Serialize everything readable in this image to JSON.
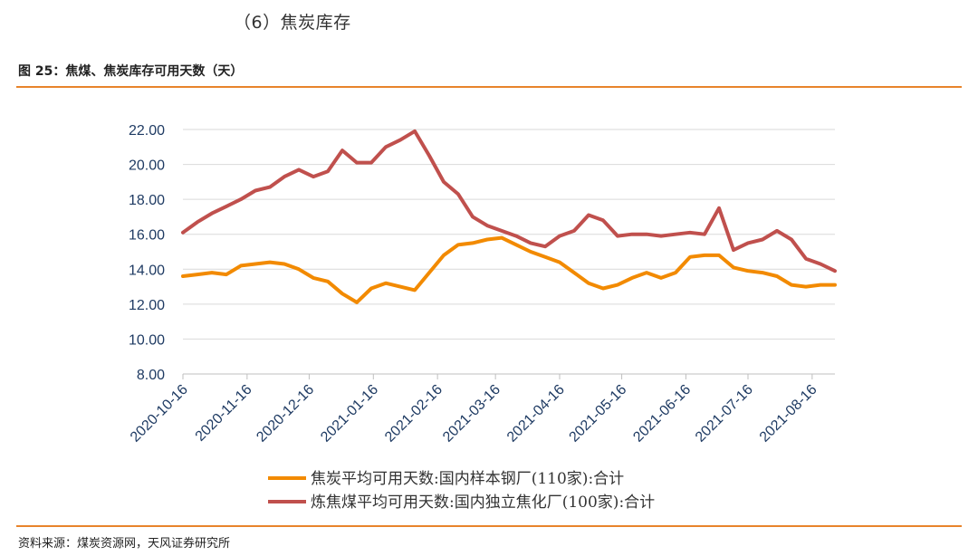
{
  "section_title": "（6）焦炭库存",
  "figure_title": "图 25：焦煤、焦炭库存可用天数（天）",
  "source": "资料来源：煤炭资源网，天风证券研究所",
  "colors": {
    "accent_rule": "#e8842b",
    "series1": "#f28a00",
    "series2": "#c0504d",
    "grid": "#d9d9d9",
    "axis_text": "#1f3b63"
  },
  "chart_data": {
    "type": "line",
    "title": "",
    "xlabel": "",
    "ylabel": "",
    "ylim": [
      8,
      22
    ],
    "yticks": [
      "8.00",
      "10.00",
      "12.00",
      "14.00",
      "16.00",
      "18.00",
      "20.00",
      "22.00"
    ],
    "xticks": [
      "2020-10-16",
      "2020-11-16",
      "2020-12-16",
      "2021-01-16",
      "2021-02-16",
      "2021-03-16",
      "2021-04-16",
      "2021-05-16",
      "2021-06-16",
      "2021-07-16",
      "2021-08-16"
    ],
    "x": [
      "2020-10-16",
      "2020-10-23",
      "2020-10-30",
      "2020-11-06",
      "2020-11-13",
      "2020-11-20",
      "2020-11-27",
      "2020-12-04",
      "2020-12-11",
      "2020-12-18",
      "2020-12-25",
      "2021-01-01",
      "2021-01-08",
      "2021-01-15",
      "2021-01-22",
      "2021-01-29",
      "2021-02-05",
      "2021-02-12",
      "2021-02-19",
      "2021-02-26",
      "2021-03-05",
      "2021-03-12",
      "2021-03-19",
      "2021-03-26",
      "2021-04-02",
      "2021-04-09",
      "2021-04-16",
      "2021-04-23",
      "2021-04-30",
      "2021-05-07",
      "2021-05-14",
      "2021-05-21",
      "2021-05-28",
      "2021-06-04",
      "2021-06-11",
      "2021-06-18",
      "2021-06-25",
      "2021-07-02",
      "2021-07-09",
      "2021-07-16",
      "2021-07-23",
      "2021-07-30",
      "2021-08-06",
      "2021-08-13",
      "2021-08-20",
      "2021-08-27"
    ],
    "series": [
      {
        "name": "焦炭平均可用天数:国内样本钢厂(110家):合计",
        "color": "#f28a00",
        "values": [
          13.6,
          13.7,
          13.8,
          13.7,
          14.2,
          14.3,
          14.4,
          14.3,
          14.0,
          13.5,
          13.3,
          12.6,
          12.1,
          12.9,
          13.2,
          13.0,
          12.8,
          13.8,
          14.8,
          15.4,
          15.5,
          15.7,
          15.8,
          15.4,
          15.0,
          14.7,
          14.4,
          13.8,
          13.2,
          12.9,
          13.1,
          13.5,
          13.8,
          13.5,
          13.8,
          14.7,
          14.8,
          14.8,
          14.1,
          13.9,
          13.8,
          13.6,
          13.1,
          13.0,
          13.1,
          13.1
        ]
      },
      {
        "name": "炼焦煤平均可用天数:国内独立焦化厂(100家):合计",
        "color": "#c0504d",
        "values": [
          16.1,
          16.7,
          17.2,
          17.6,
          18.0,
          18.5,
          18.7,
          19.3,
          19.7,
          19.3,
          19.6,
          20.8,
          20.1,
          20.1,
          21.0,
          21.4,
          21.9,
          20.5,
          19.0,
          18.3,
          17.0,
          16.5,
          16.2,
          15.9,
          15.5,
          15.3,
          15.9,
          16.2,
          17.1,
          16.8,
          15.9,
          16.0,
          16.0,
          15.9,
          16.0,
          16.1,
          16.0,
          17.5,
          15.1,
          15.5,
          15.7,
          16.2,
          15.7,
          14.6,
          14.3,
          13.9
        ]
      }
    ],
    "legend_position": "bottom",
    "grid": true
  }
}
